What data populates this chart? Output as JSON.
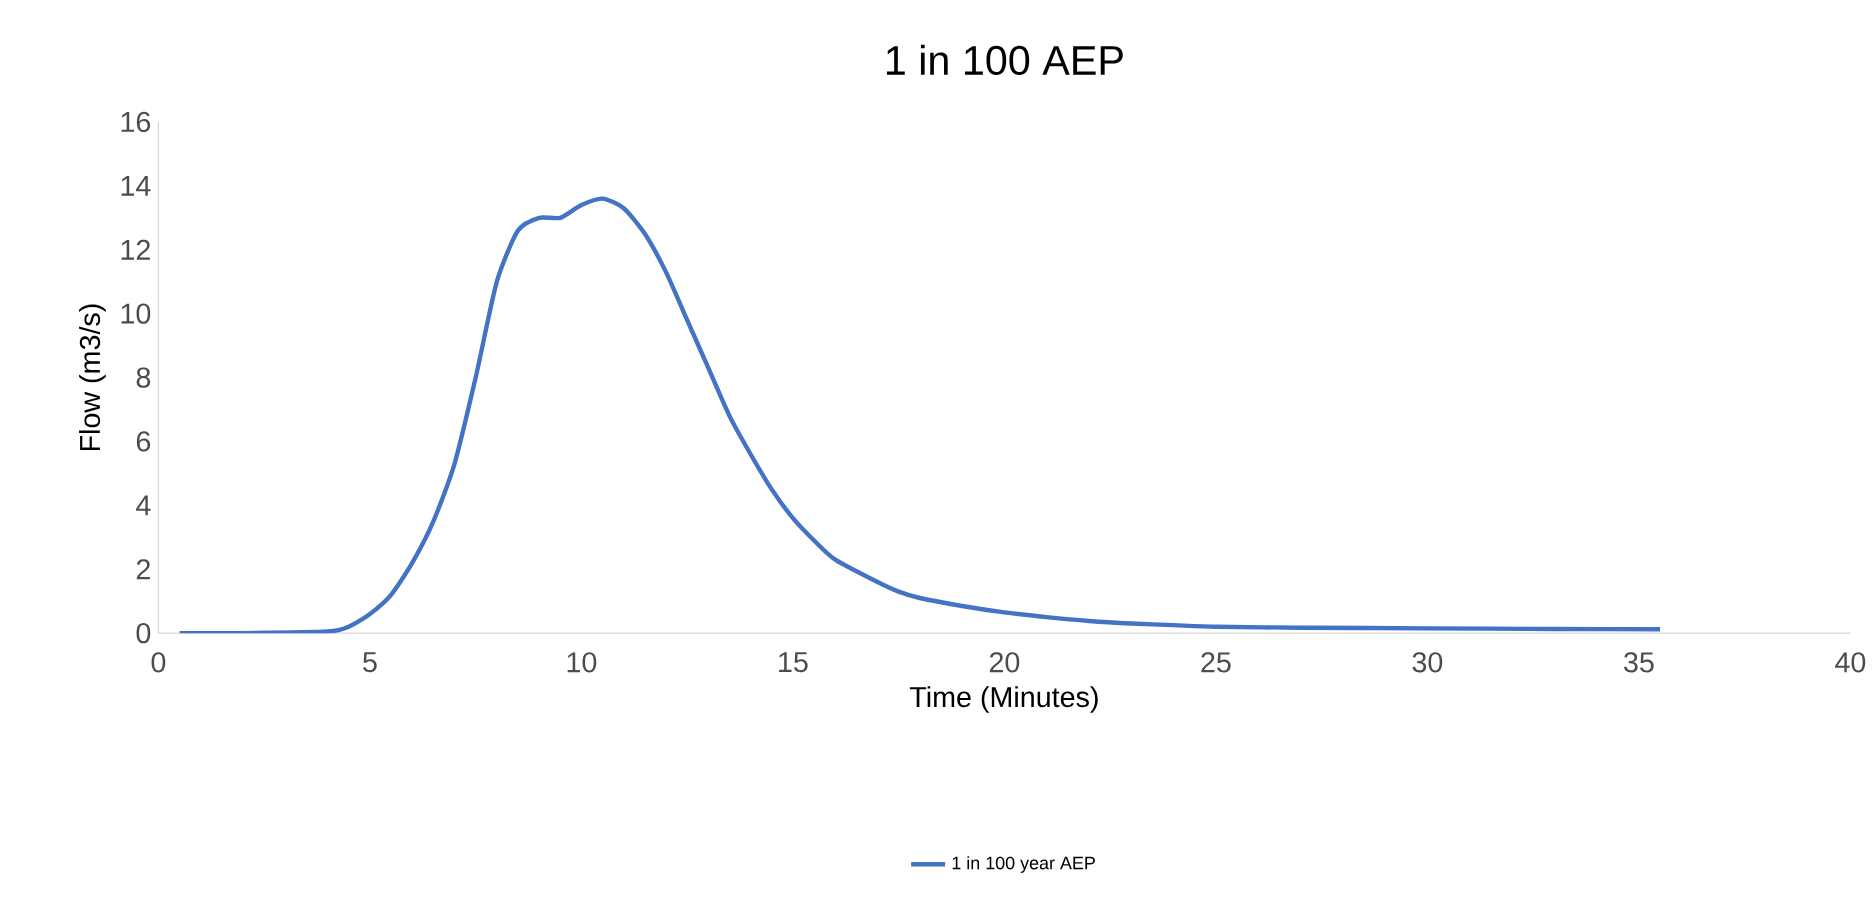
{
  "chart_data": {
    "type": "line",
    "title": "1 in 100 AEP",
    "xlabel": "Time (Minutes)",
    "ylabel": "Flow (m3/s)",
    "xlim": [
      0,
      40
    ],
    "xticks": [
      0,
      5,
      10,
      15,
      20,
      25,
      30,
      35,
      40
    ],
    "ylim": [
      0,
      16
    ],
    "yticks": [
      0,
      2,
      4,
      6,
      8,
      10,
      12,
      14,
      16
    ],
    "grid": false,
    "legend": "bottom",
    "marker": "none",
    "line_style": "solid",
    "series": [
      {
        "name": "1 in 100 year AEP",
        "color": "#4472c4",
        "x": [
          0.5,
          2,
          4,
          4.5,
          5,
          5.5,
          6,
          6.5,
          7,
          7.5,
          8,
          8.5,
          9,
          9.5,
          10,
          10.5,
          11,
          11.5,
          12,
          12.5,
          13,
          13.5,
          14,
          14.5,
          15,
          15.5,
          16,
          17,
          17.5,
          18,
          19,
          20,
          21,
          22,
          23,
          24,
          25,
          27,
          30,
          33,
          35.5
        ],
        "values": [
          0,
          0,
          0.05,
          0.2,
          0.6,
          1.2,
          2.2,
          3.5,
          5.3,
          8,
          11,
          12.6,
          13,
          13,
          13.4,
          13.6,
          13.3,
          12.5,
          11.3,
          9.8,
          8.3,
          6.8,
          5.6,
          4.5,
          3.6,
          2.9,
          2.3,
          1.6,
          1.3,
          1.1,
          0.85,
          0.65,
          0.5,
          0.38,
          0.3,
          0.25,
          0.2,
          0.17,
          0.15,
          0.13,
          0.12
        ]
      }
    ]
  }
}
